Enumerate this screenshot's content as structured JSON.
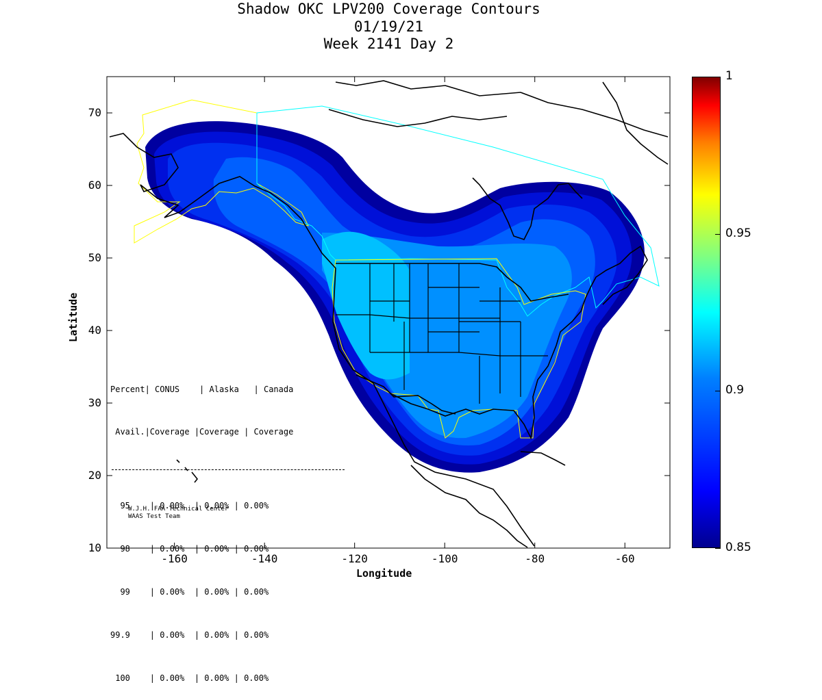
{
  "title": {
    "line1": "Shadow OKC LPV200 Coverage Contours",
    "line2": "01/19/21",
    "line3": "Week 2141 Day 2"
  },
  "axes": {
    "xlabel": "Longitude",
    "ylabel": "Latitude",
    "xlim": [
      -175,
      -50
    ],
    "ylim": [
      10,
      75
    ],
    "xticks": [
      "-160",
      "-140",
      "-120",
      "-100",
      "-80",
      "-60"
    ],
    "xtick_values": [
      -160,
      -140,
      -120,
      -100,
      -80,
      -60
    ],
    "yticks": [
      "10",
      "20",
      "30",
      "40",
      "50",
      "60",
      "70"
    ],
    "ytick_values": [
      10,
      20,
      30,
      40,
      50,
      60,
      70
    ]
  },
  "colorbar": {
    "range": [
      0.85,
      1
    ],
    "ticks": [
      "0.85",
      "0.9",
      "0.95",
      "1"
    ],
    "tick_values": [
      0.85,
      0.9,
      0.95,
      1.0
    ]
  },
  "stats_table": {
    "header1": "Percent| CONUS    | Alaska   | Canada",
    "header2": " Avail.|Coverage |Coverage | Coverage",
    "rows": [
      "  95    | 0.00%  | 0.00% | 0.00%",
      "  98    | 0.00%  | 0.00% | 0.00%",
      "  99    | 0.00%  | 0.00% | 0.00%",
      "99.9    | 0.00%  | 0.00% | 0.00%",
      " 100    | 0.00%  | 0.00% | 0.00%"
    ]
  },
  "credit": {
    "line1": "W.J.H. FAA Technical Center",
    "line2": "WAAS Test Team"
  },
  "colors": {
    "band_085": "#0000a0",
    "band_086": "#0010d8",
    "band_087": "#0030f0",
    "band_088": "#0060ff",
    "band_089": "#0090ff",
    "band_090": "#00c0ff",
    "band_091": "#00e0ff",
    "region_outline_yellow": "#ffff00",
    "region_outline_cyan": "#00ffff"
  }
}
